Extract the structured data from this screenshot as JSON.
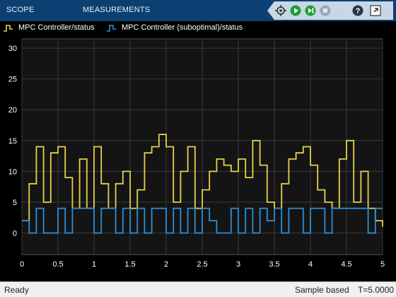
{
  "toolbar": {
    "tabs": [
      {
        "label": "SCOPE"
      },
      {
        "label": "MEASUREMENTS"
      }
    ],
    "icons": [
      "highlight-simulink-block-icon",
      "run-icon",
      "step-forward-icon",
      "stop-icon",
      "help-icon",
      "undock-icon"
    ]
  },
  "legend": {
    "entries": [
      {
        "label": "MPC Controller/status",
        "color": "#e6d24a"
      },
      {
        "label": "MPC Controller (suboptimal)/status",
        "color": "#2f8fd6"
      }
    ]
  },
  "status": {
    "ready": "Ready",
    "mode": "Sample based",
    "time": "T=5.0000"
  },
  "colors": {
    "plot_bg": "#141414",
    "grid": "#3a3a3a",
    "tick_text": "#ffffff",
    "toolbar": "#0c3f72"
  },
  "chart_data": {
    "type": "line",
    "step": true,
    "title": "",
    "xlabel": "",
    "ylabel": "",
    "xlim": [
      0,
      5
    ],
    "ylim": [
      -3.5,
      31.5
    ],
    "xticks": [
      0,
      0.5,
      1,
      1.5,
      2,
      2.5,
      3,
      3.5,
      4,
      4.5,
      5
    ],
    "yticks": [
      0,
      5,
      10,
      15,
      20,
      25,
      30
    ],
    "grid": true,
    "legend": "top",
    "series": [
      {
        "name": "MPC Controller/status",
        "color": "#e6d24a",
        "points": [
          [
            0,
            2
          ],
          [
            0.1,
            8
          ],
          [
            0.2,
            14
          ],
          [
            0.3,
            5
          ],
          [
            0.4,
            13
          ],
          [
            0.5,
            14
          ],
          [
            0.6,
            9
          ],
          [
            0.7,
            4
          ],
          [
            0.8,
            12
          ],
          [
            0.9,
            4
          ],
          [
            1.0,
            14
          ],
          [
            1.1,
            8
          ],
          [
            1.2,
            4
          ],
          [
            1.3,
            8
          ],
          [
            1.4,
            10
          ],
          [
            1.5,
            4
          ],
          [
            1.6,
            7
          ],
          [
            1.7,
            13
          ],
          [
            1.8,
            14
          ],
          [
            1.9,
            16
          ],
          [
            2.0,
            14
          ],
          [
            2.1,
            5
          ],
          [
            2.2,
            10
          ],
          [
            2.3,
            14
          ],
          [
            2.4,
            4
          ],
          [
            2.5,
            7
          ],
          [
            2.6,
            10
          ],
          [
            2.7,
            12
          ],
          [
            2.8,
            11
          ],
          [
            2.9,
            10
          ],
          [
            3.0,
            12
          ],
          [
            3.1,
            9
          ],
          [
            3.2,
            15
          ],
          [
            3.3,
            11
          ],
          [
            3.4,
            5
          ],
          [
            3.5,
            4
          ],
          [
            3.6,
            8
          ],
          [
            3.7,
            12
          ],
          [
            3.8,
            13
          ],
          [
            3.9,
            14
          ],
          [
            4.0,
            11
          ],
          [
            4.1,
            7
          ],
          [
            4.2,
            5
          ],
          [
            4.3,
            4
          ],
          [
            4.4,
            12
          ],
          [
            4.5,
            15
          ],
          [
            4.6,
            5
          ],
          [
            4.7,
            10
          ],
          [
            4.8,
            4
          ],
          [
            4.9,
            2
          ],
          [
            5.0,
            1
          ]
        ]
      },
      {
        "name": "MPC Controller (suboptimal)/status",
        "color": "#2f8fd6",
        "points": [
          [
            0,
            2
          ],
          [
            0.1,
            0
          ],
          [
            0.2,
            4
          ],
          [
            0.3,
            0
          ],
          [
            0.4,
            0
          ],
          [
            0.5,
            4
          ],
          [
            0.6,
            0
          ],
          [
            0.7,
            4
          ],
          [
            0.8,
            4
          ],
          [
            0.9,
            4
          ],
          [
            1.0,
            0
          ],
          [
            1.1,
            4
          ],
          [
            1.2,
            4
          ],
          [
            1.3,
            0
          ],
          [
            1.4,
            4
          ],
          [
            1.5,
            0
          ],
          [
            1.6,
            4
          ],
          [
            1.7,
            0
          ],
          [
            1.8,
            4
          ],
          [
            1.9,
            4
          ],
          [
            2.0,
            0
          ],
          [
            2.1,
            4
          ],
          [
            2.2,
            0
          ],
          [
            2.3,
            4
          ],
          [
            2.4,
            0
          ],
          [
            2.5,
            4
          ],
          [
            2.6,
            2
          ],
          [
            2.7,
            0
          ],
          [
            2.8,
            0
          ],
          [
            2.9,
            4
          ],
          [
            3.0,
            0
          ],
          [
            3.1,
            4
          ],
          [
            3.2,
            0
          ],
          [
            3.3,
            4
          ],
          [
            3.4,
            2
          ],
          [
            3.5,
            4
          ],
          [
            3.6,
            0
          ],
          [
            3.7,
            4
          ],
          [
            3.8,
            4
          ],
          [
            3.9,
            0
          ],
          [
            4.0,
            4
          ],
          [
            4.1,
            4
          ],
          [
            4.2,
            0
          ],
          [
            4.3,
            4
          ],
          [
            4.4,
            4
          ],
          [
            4.5,
            4
          ],
          [
            4.6,
            4
          ],
          [
            4.7,
            4
          ],
          [
            4.8,
            0
          ],
          [
            4.9,
            4
          ],
          [
            5.0,
            4
          ]
        ]
      }
    ]
  }
}
